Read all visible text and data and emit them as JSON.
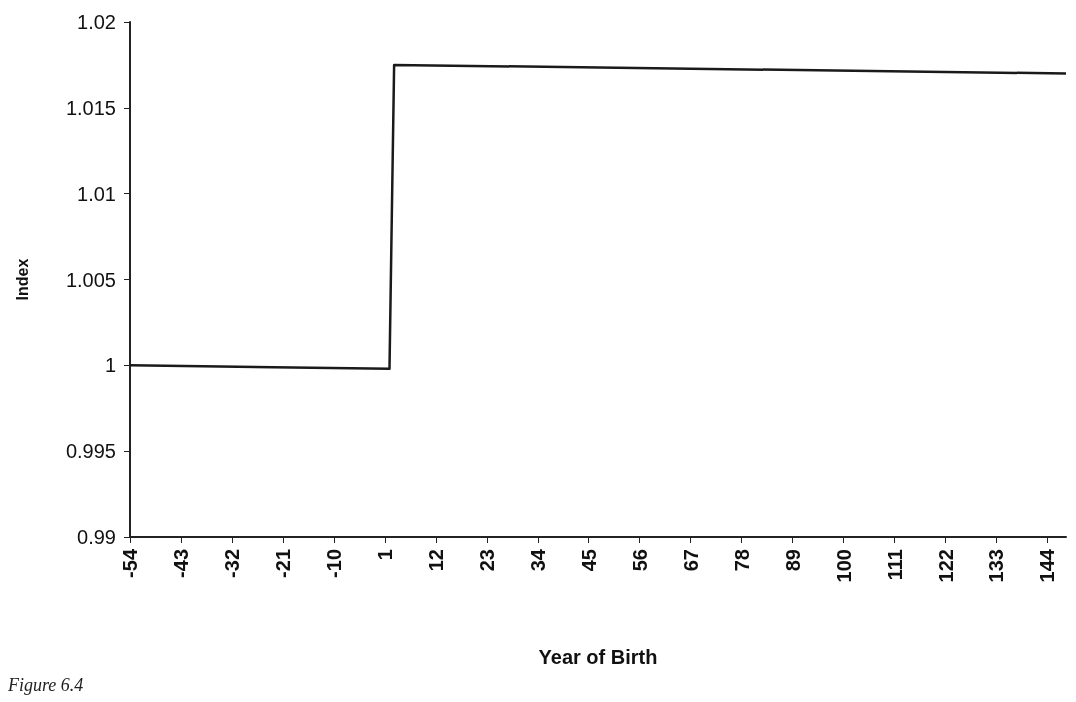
{
  "chart_data": {
    "type": "line",
    "xlabel": "Year of Birth",
    "ylabel": "Index",
    "annotations": [
      "Figure 6.4"
    ],
    "x": [
      -54,
      2,
      3,
      148
    ],
    "series": [
      {
        "color": "#1a1a1a",
        "values": [
          1.0,
          0.9998,
          1.0175,
          1.017
        ]
      }
    ],
    "xlim": [
      -54,
      148
    ],
    "xticks": [
      -54,
      -43,
      -32,
      -21,
      -10,
      1,
      12,
      23,
      34,
      45,
      56,
      67,
      78,
      89,
      100,
      111,
      122,
      133,
      144
    ],
    "ylim": [
      0.99,
      1.02
    ],
    "yticks": [
      0.99,
      0.995,
      1,
      1.005,
      1.01,
      1.015,
      1.02
    ],
    "grid": false,
    "marker": "none",
    "line_style": "solid"
  }
}
